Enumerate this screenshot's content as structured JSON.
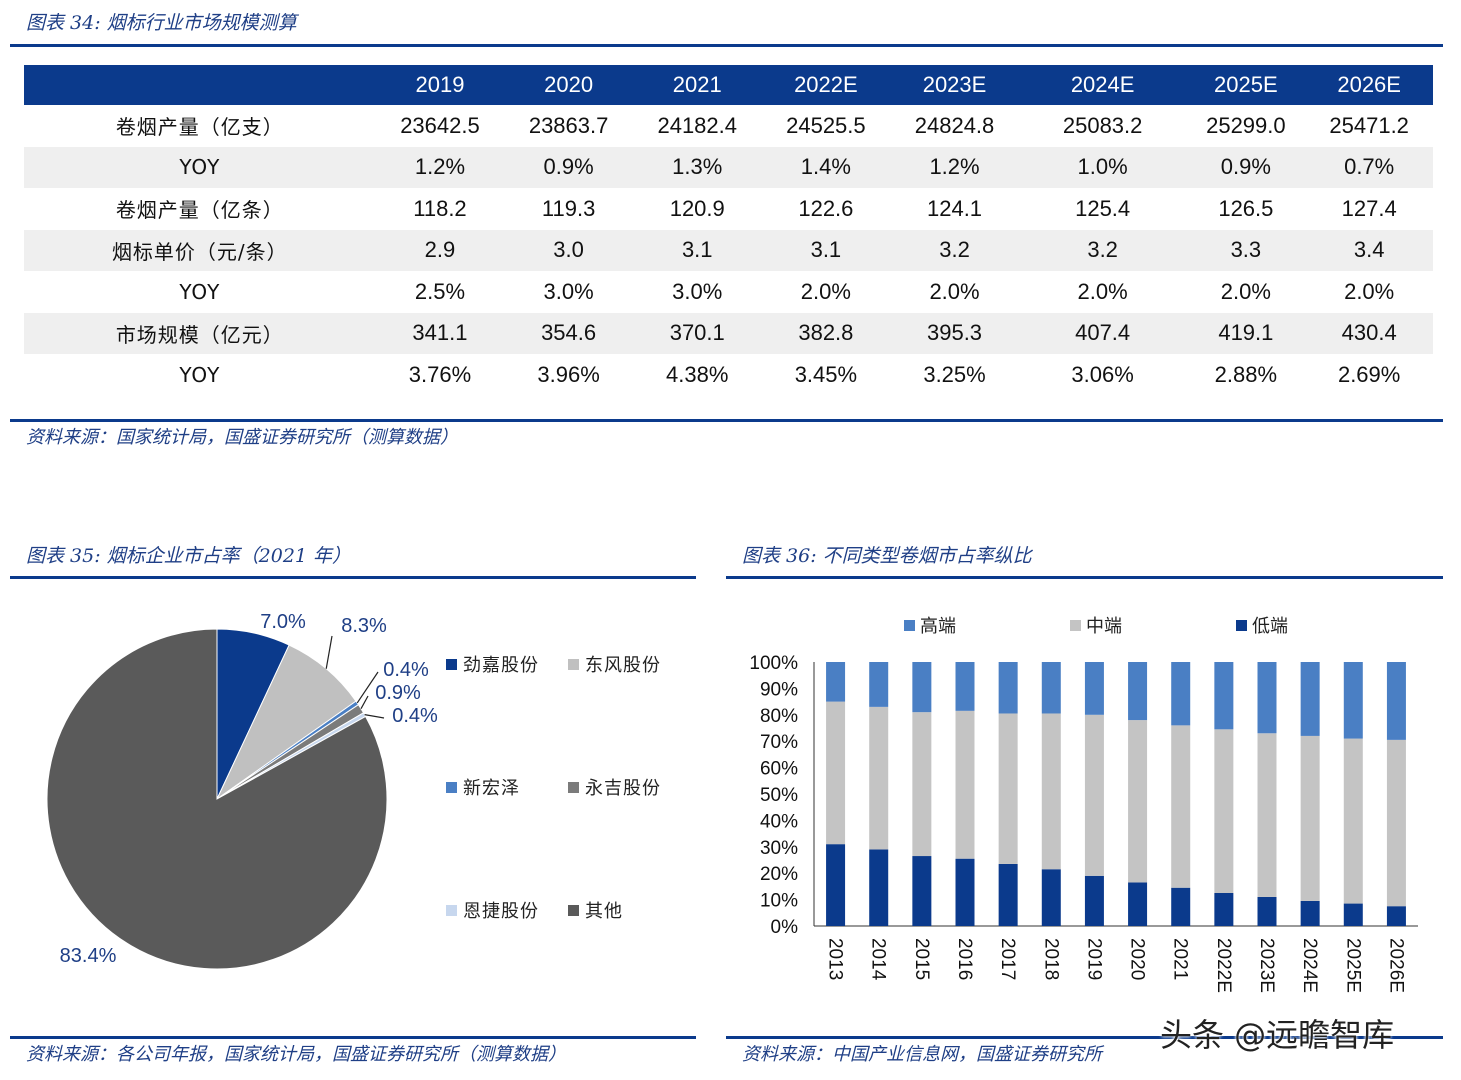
{
  "fig34": {
    "caption": "图表 34:  烟标行业市场规模测算",
    "source": "资料来源：国家统计局，国盛证券研究所（测算数据）"
  },
  "fig35": {
    "caption": "图表 35:  烟标企业市占率（2021 年）",
    "source": "资料来源：各公司年报，国家统计局，国盛证券研究所（测算数据）"
  },
  "fig36": {
    "caption": "图表 36:  不同类型卷烟市占率纵比",
    "source": "资料来源：中国产业信息网，国盛证券研究所"
  },
  "watermark": "头条 @远瞻智库",
  "chart_data": [
    {
      "type": "table",
      "columns": [
        "",
        "2019",
        "2020",
        "2021",
        "2022E",
        "2023E",
        "2024E",
        "2025E",
        "2026E"
      ],
      "rows": [
        [
          "卷烟产量（亿支）",
          "23642.5",
          "23863.7",
          "24182.4",
          "24525.5",
          "24824.8",
          "25083.2",
          "25299.0",
          "25471.2"
        ],
        [
          "YOY",
          "1.2%",
          "0.9%",
          "1.3%",
          "1.4%",
          "1.2%",
          "1.0%",
          "0.9%",
          "0.7%"
        ],
        [
          "卷烟产量（亿条）",
          "118.2",
          "119.3",
          "120.9",
          "122.6",
          "124.1",
          "125.4",
          "126.5",
          "127.4"
        ],
        [
          "烟标单价（元/条）",
          "2.9",
          "3.0",
          "3.1",
          "3.1",
          "3.2",
          "3.2",
          "3.3",
          "3.4"
        ],
        [
          "YOY",
          "2.5%",
          "3.0%",
          "3.0%",
          "2.0%",
          "2.0%",
          "2.0%",
          "2.0%",
          "2.0%"
        ],
        [
          "市场规模（亿元）",
          "341.1",
          "354.6",
          "370.1",
          "382.8",
          "395.3",
          "407.4",
          "419.1",
          "430.4"
        ],
        [
          "YOY",
          "3.76%",
          "3.96%",
          "4.38%",
          "3.45%",
          "3.25%",
          "3.06%",
          "2.88%",
          "2.69%"
        ]
      ]
    },
    {
      "type": "pie",
      "slices": [
        {
          "name": "劲嘉股份",
          "value": 7.0,
          "label": "7.0%",
          "color": "#0b3a8c"
        },
        {
          "name": "东风股份",
          "value": 8.3,
          "label": "8.3%",
          "color": "#c0c0c0"
        },
        {
          "name": "新宏泽",
          "value": 0.4,
          "label": "0.4%",
          "color": "#4a7fc4"
        },
        {
          "name": "永吉股份",
          "value": 0.9,
          "label": "0.9%",
          "color": "#7b7b7b"
        },
        {
          "name": "恩捷股份",
          "value": 0.4,
          "label": "0.4%",
          "color": "#c7d7ee"
        },
        {
          "name": "其他",
          "value": 83.4,
          "label": "83.4%",
          "color": "#5a5a5a"
        }
      ],
      "legend_position": "right"
    },
    {
      "type": "bar",
      "stacked": true,
      "categories": [
        "2013",
        "2014",
        "2015",
        "2016",
        "2017",
        "2018",
        "2019",
        "2020",
        "2021",
        "2022E",
        "2023E",
        "2024E",
        "2025E",
        "2026E"
      ],
      "series": [
        {
          "name": "低端",
          "color": "#0b3a8c",
          "values": [
            31,
            29,
            26.5,
            25.5,
            23.5,
            21.5,
            19,
            16.5,
            14.5,
            12.5,
            11,
            9.5,
            8.5,
            7.5
          ]
        },
        {
          "name": "中端",
          "color": "#c4c4c4",
          "values": [
            54,
            54,
            54.5,
            56,
            57,
            59,
            61,
            61.5,
            61.5,
            62,
            62,
            62.5,
            62.5,
            63
          ]
        },
        {
          "name": "高端",
          "color": "#4a7fc4",
          "values": [
            15,
            17,
            19,
            18.5,
            19.5,
            19.5,
            20,
            22,
            24,
            25.5,
            27,
            28,
            29,
            29.5
          ]
        }
      ],
      "ylim": [
        0,
        100
      ],
      "yticks": [
        "0%",
        "10%",
        "20%",
        "30%",
        "40%",
        "50%",
        "60%",
        "70%",
        "80%",
        "90%",
        "100%"
      ],
      "legend_position": "top",
      "legend_order": [
        "高端",
        "中端",
        "低端"
      ]
    }
  ]
}
